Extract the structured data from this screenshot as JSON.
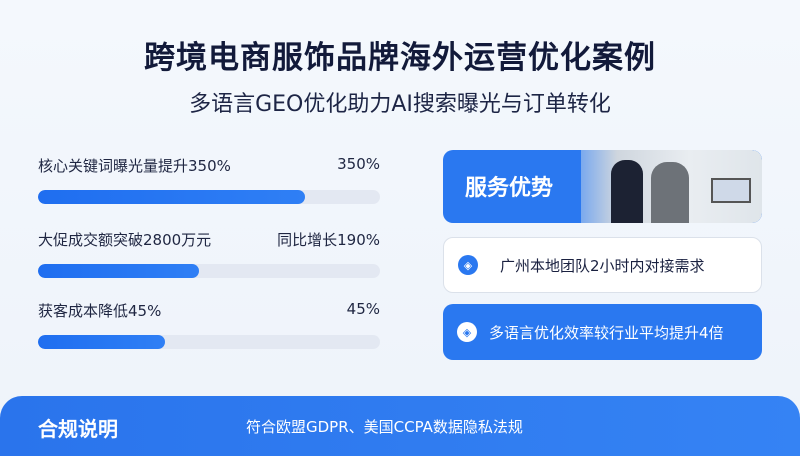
{
  "header": {
    "title": "跨境电商服饰品牌海外运营优化案例",
    "subtitle": "多语言GEO优化助力AI搜索曝光与订单转化"
  },
  "metrics": [
    {
      "label": "核心关键词曝光量提升350%",
      "value": "350%",
      "progress": 0.78
    },
    {
      "label": "大促成交额突破2800万元",
      "value": "同比增长190%",
      "progress": 0.47
    },
    {
      "label": "获客成本降低45%",
      "value": "45%",
      "progress": 0.37
    }
  ],
  "service": {
    "title": "服务优势",
    "image": "office-team-photo"
  },
  "cards": [
    {
      "icon": "layers-icon",
      "text": "广州本地团队2小时内对接需求"
    },
    {
      "icon": "layers-icon",
      "text": "多语言优化效率较行业平均提升4倍"
    }
  ],
  "footer": {
    "title": "合规说明",
    "text": "符合欧盟GDPR、美国CCPA数据隐私法规"
  },
  "colors": {
    "accent": "#2a78f0",
    "track": "#e3e8f2",
    "title": "#121a3a"
  }
}
